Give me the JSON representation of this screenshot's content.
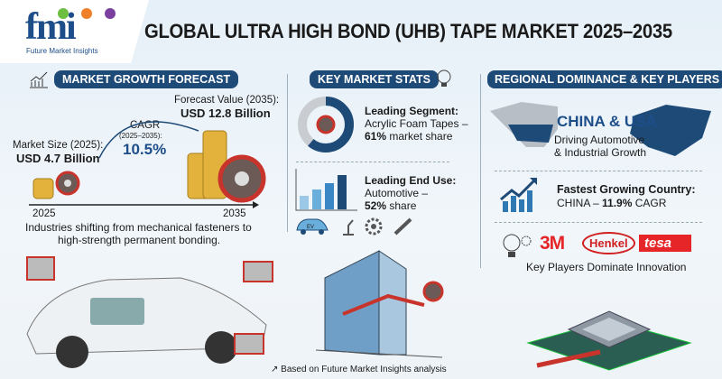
{
  "logo": {
    "mark": "fmi",
    "subtitle": "Future Market Insights",
    "dot_colors": [
      "#6cbf3f",
      "#f07f2a",
      "#7b3fa0"
    ]
  },
  "title": "GLOBAL ULTRA HIGH BOND (UHB) TAPE MARKET 2025–2035",
  "growth": {
    "header": "MARKET GROWTH FORECAST",
    "forecast_label": "Forecast Value (2035):",
    "forecast_value": "USD 12.8 Billion",
    "cagr_label": "CAGR",
    "cagr_period": "(2025–2035):",
    "cagr_value": "10.5%",
    "size_label": "Market Size (2025):",
    "size_value": "USD 4.7 Billion",
    "axis_start": "2025",
    "axis_end": "2035",
    "caption_1": "Industries shifting from mechanical fasteners to",
    "caption_2": "high-strength permanent bonding."
  },
  "stats": {
    "header": "KEY MARKET STATS",
    "segment_title": "Leading Segment:",
    "segment_name": "Acrylic Foam Tapes –",
    "segment_share": "61%",
    "segment_suffix": " market share",
    "segment_share_fraction": 0.61,
    "enduse_title": "Leading End Use:",
    "enduse_name": "Automotive –",
    "enduse_share": "52%",
    "enduse_suffix": " share",
    "ev_label": "EV"
  },
  "regional": {
    "header": "REGIONAL DOMINANCE & KEY PLAYERS",
    "regions": "CHINA & USA",
    "regions_sub_1": "Driving Automotive",
    "regions_sub_2": "& Industrial Growth",
    "fastest_title": "Fastest Growing Country:",
    "fastest_country": "CHINA – ",
    "fastest_cagr": "11.9%",
    "fastest_suffix": " CAGR",
    "players": [
      "3M",
      "Henkel",
      "tesa"
    ],
    "players_caption": "Key Players Dominate Innovation"
  },
  "footer": "Based on Future Market Insights analysis",
  "colors": {
    "navy": "#1e4a78",
    "tape_red": "#c8342b",
    "gold": "#e3b23c"
  }
}
